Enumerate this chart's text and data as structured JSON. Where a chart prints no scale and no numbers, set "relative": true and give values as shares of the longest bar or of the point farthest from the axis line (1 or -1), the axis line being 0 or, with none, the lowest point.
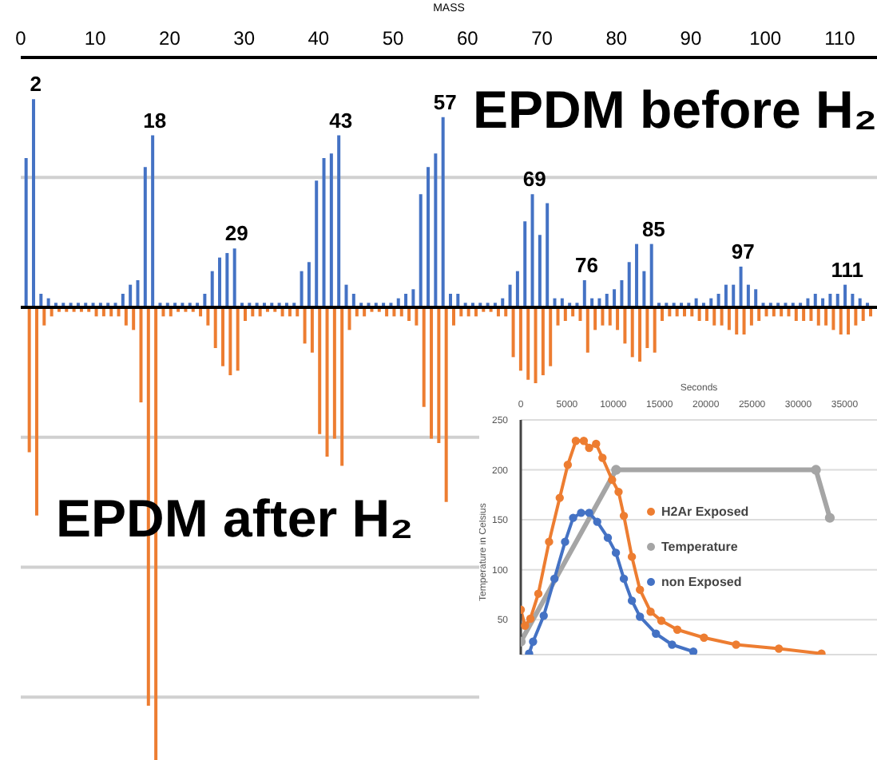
{
  "chart_data": [
    {
      "type": "bar",
      "relative": true,
      "xlabel": "MASS",
      "xlim": [
        0,
        115
      ],
      "xticks": [
        0,
        10,
        20,
        30,
        40,
        50,
        60,
        70,
        80,
        90,
        100,
        110
      ],
      "grid": "y",
      "x": [
        1,
        2,
        3,
        4,
        5,
        6,
        7,
        8,
        9,
        10,
        11,
        12,
        13,
        14,
        15,
        16,
        17,
        18,
        19,
        20,
        21,
        22,
        23,
        24,
        25,
        26,
        27,
        28,
        29,
        30,
        31,
        32,
        33,
        34,
        35,
        36,
        37,
        38,
        39,
        40,
        41,
        42,
        43,
        44,
        45,
        46,
        47,
        48,
        49,
        50,
        51,
        52,
        53,
        54,
        55,
        56,
        57,
        58,
        59,
        60,
        61,
        62,
        63,
        64,
        65,
        66,
        67,
        68,
        69,
        70,
        71,
        72,
        73,
        74,
        75,
        76,
        77,
        78,
        79,
        80,
        81,
        82,
        83,
        84,
        85,
        86,
        87,
        88,
        89,
        90,
        91,
        92,
        93,
        94,
        95,
        96,
        97,
        98,
        99,
        100,
        101,
        102,
        103,
        104,
        105,
        106,
        107,
        108,
        109,
        110,
        111,
        112,
        113,
        114
      ],
      "series": [
        {
          "color": "#4472c4",
          "values": [
            0.33,
            0.46,
            0.03,
            0.02,
            0.01,
            0.01,
            0.01,
            0.01,
            0.01,
            0.01,
            0.01,
            0.01,
            0.01,
            0.03,
            0.05,
            0.06,
            0.31,
            0.38,
            0.01,
            0.01,
            0.01,
            0.01,
            0.01,
            0.01,
            0.03,
            0.08,
            0.11,
            0.12,
            0.13,
            0.01,
            0.01,
            0.01,
            0.01,
            0.01,
            0.01,
            0.01,
            0.01,
            0.08,
            0.1,
            0.28,
            0.33,
            0.34,
            0.38,
            0.05,
            0.03,
            0.01,
            0.01,
            0.01,
            0.01,
            0.01,
            0.02,
            0.03,
            0.04,
            0.25,
            0.31,
            0.34,
            0.42,
            0.03,
            0.03,
            0.01,
            0.01,
            0.01,
            0.01,
            0.01,
            0.02,
            0.05,
            0.08,
            0.19,
            0.25,
            0.16,
            0.23,
            0.02,
            0.02,
            0.01,
            0.01,
            0.06,
            0.02,
            0.02,
            0.03,
            0.04,
            0.06,
            0.1,
            0.14,
            0.08,
            0.14,
            0.01,
            0.01,
            0.01,
            0.01,
            0.01,
            0.02,
            0.01,
            0.02,
            0.03,
            0.05,
            0.05,
            0.09,
            0.05,
            0.04,
            0.01,
            0.01,
            0.01,
            0.01,
            0.01,
            0.01,
            0.02,
            0.03,
            0.02,
            0.03,
            0.03,
            0.05,
            0.03,
            0.02,
            0.01
          ]
        },
        {
          "color": "#ed7d31",
          "values": [
            -0.32,
            -0.46,
            -0.04,
            -0.02,
            -0.01,
            -0.01,
            -0.01,
            -0.01,
            -0.01,
            -0.02,
            -0.02,
            -0.02,
            -0.02,
            -0.04,
            -0.05,
            -0.21,
            -0.88,
            -1,
            -0.02,
            -0.02,
            -0.01,
            -0.01,
            -0.01,
            -0.02,
            -0.04,
            -0.09,
            -0.13,
            -0.15,
            -0.14,
            -0.03,
            -0.02,
            -0.02,
            -0.01,
            -0.01,
            -0.02,
            -0.02,
            -0.02,
            -0.08,
            -0.1,
            -0.28,
            -0.33,
            -0.29,
            -0.35,
            -0.05,
            -0.02,
            -0.02,
            -0.01,
            -0.01,
            -0.02,
            -0.02,
            -0.02,
            -0.03,
            -0.04,
            -0.22,
            -0.29,
            -0.3,
            -0.43,
            -0.04,
            -0.02,
            -0.02,
            -0.02,
            -0.01,
            -0.01,
            -0.02,
            -0.02,
            -0.11,
            -0.14,
            -0.16,
            -0.17,
            -0.15,
            -0.13,
            -0.04,
            -0.03,
            -0.02,
            -0.03,
            -0.1,
            -0.05,
            -0.04,
            -0.04,
            -0.05,
            -0.08,
            -0.11,
            -0.12,
            -0.09,
            -0.1,
            -0.03,
            -0.02,
            -0.02,
            -0.02,
            -0.02,
            -0.03,
            -0.03,
            -0.04,
            -0.04,
            -0.05,
            -0.06,
            -0.06,
            -0.04,
            -0.03,
            -0.02,
            -0.02,
            -0.02,
            -0.02,
            -0.03,
            -0.03,
            -0.03,
            -0.04,
            -0.04,
            -0.05,
            -0.06,
            -0.06,
            -0.04,
            -0.03,
            -0.02
          ]
        }
      ],
      "annotations": [
        {
          "text": "2",
          "x": 2,
          "y": 0.46
        },
        {
          "text": "18",
          "x": 18,
          "y": 0.38
        },
        {
          "text": "29",
          "x": 29,
          "y": 0.13
        },
        {
          "text": "43",
          "x": 43,
          "y": 0.38
        },
        {
          "text": "57",
          "x": 57,
          "y": 0.42
        },
        {
          "text": "69",
          "x": 69,
          "y": 0.25
        },
        {
          "text": "76",
          "x": 76,
          "y": 0.06
        },
        {
          "text": "85",
          "x": 85,
          "y": 0.14
        },
        {
          "text": "97",
          "x": 97,
          "y": 0.09
        },
        {
          "text": "111",
          "x": 111,
          "y": 0.05
        },
        "EPDM before H₂",
        "EPDM after H₂"
      ]
    },
    {
      "type": "line",
      "xlabel": "Seconds",
      "ylabel": "Temperature in Celsius",
      "xlim": [
        0,
        38500
      ],
      "xticks": [
        0,
        5000,
        10000,
        15000,
        20000,
        25000,
        30000,
        35000
      ],
      "ylim": [
        15,
        250
      ],
      "yticks": [
        50,
        100,
        150,
        200,
        250
      ],
      "grid": "y",
      "legend": "right",
      "marker": "circle",
      "series": [
        {
          "name": "Temperature",
          "color": "#a5a5a5",
          "x": [
            0,
            10300,
            31900,
            33400
          ],
          "values": [
            28,
            200,
            200,
            152
          ]
        },
        {
          "name": "non Exposed",
          "color": "#4472c4",
          "x": [
            900,
            1330,
            2480,
            3640,
            4790,
            5660,
            6520,
            7390,
            8260,
            9410,
            10280,
            11140,
            12010,
            12880,
            14610,
            16350,
            18650
          ],
          "values": [
            16,
            28,
            54,
            91,
            128,
            152,
            157,
            157,
            148,
            132,
            117,
            91,
            69,
            53,
            36,
            25,
            18
          ]
        },
        {
          "name": "H2Ar Exposed",
          "color": "#ed7d31",
          "x": [
            0,
            460,
            1040,
            1900,
            3060,
            4210,
            5080,
            5950,
            6810,
            7390,
            8140,
            8830,
            9870,
            10570,
            11140,
            12010,
            12880,
            14030,
            15190,
            16920,
            19800,
            23270,
            27890,
            32500
          ],
          "values": [
            60,
            44,
            51,
            76,
            128,
            172,
            205,
            229,
            229,
            222,
            226,
            212,
            190,
            178,
            154,
            113,
            80,
            58,
            49,
            40,
            32,
            25,
            21,
            16
          ]
        }
      ]
    }
  ]
}
